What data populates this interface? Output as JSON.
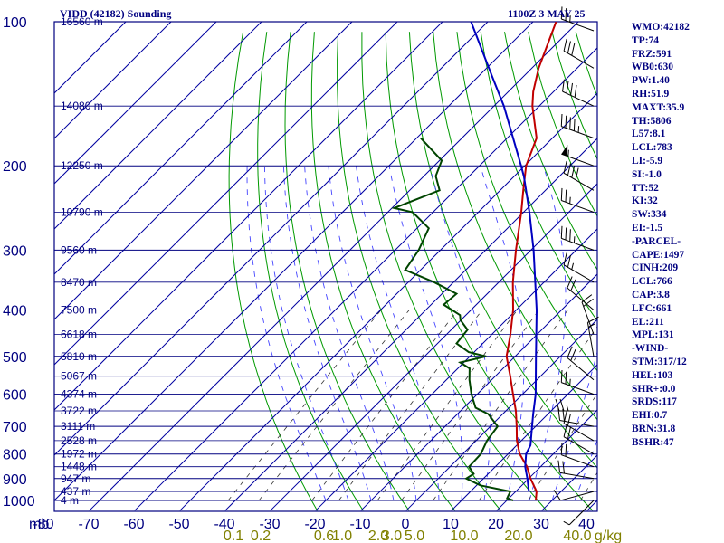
{
  "header": {
    "station_title": "VIDD (42182) Sounding",
    "time_title": "1100Z  3 MAY 25"
  },
  "indices": [
    "WMO:42182",
    "TP:74",
    "FRZ:591",
    "WB0:630",
    "PW:1.40",
    "RH:51.9",
    "MAXT:35.9",
    "TH:5806",
    "L57:8.1",
    "LCL:783",
    "LI:-5.9",
    "SI:-1.0",
    "TT:52",
    "KI:32",
    "SW:334",
    "EI:-1.5",
    "-PARCEL-",
    "CAPE:1497",
    "CINH:209",
    "LCL:766",
    "CAP:3.8",
    "LFC:661",
    "EL:211",
    "MPL:131",
    "-WIND-",
    "STM:317/12",
    "HEL:103",
    "SHR+:0.0",
    "SRDS:117",
    "EHI:0.7",
    "BRN:31.8",
    "BSHR:47"
  ],
  "colors": {
    "frame": "#000080",
    "isotherm_grid": "#0000a0",
    "dry_adiabat": "#009900",
    "moist_adiabat": "#4444ff",
    "mixing_ratio": "#333333",
    "temperature": "#c00000",
    "dewpoint": "#004400",
    "parcel": "#0000c0",
    "wind_barb": "#000000",
    "mixing_label": "#808000"
  },
  "chart_data": {
    "type": "skew-t",
    "title": "VIDD (42182) Sounding",
    "subtitle": "1100Z  3 MAY 25",
    "pressure_levels": [
      1000,
      900,
      800,
      700,
      600,
      500,
      400,
      300,
      200,
      100
    ],
    "pressure_labels": [
      "1000",
      "900",
      "800",
      "700",
      "600",
      "500",
      "400",
      "300",
      "200",
      "100"
    ],
    "y_axis_unit": "mb",
    "temperature_ticks": [
      -80,
      -70,
      -60,
      -50,
      -40,
      -30,
      -20,
      -10,
      0,
      10,
      20,
      30,
      40
    ],
    "temperature_labels": [
      "-80",
      "-70",
      "-60",
      "-50",
      "-40",
      "-30",
      "-20",
      "-10",
      "0",
      "10",
      "20",
      "30",
      "40"
    ],
    "ylim": [
      1000,
      100
    ],
    "height_labels": [
      {
        "p": 1000,
        "text": "4 m"
      },
      {
        "p": 958,
        "text": "437 m"
      },
      {
        "p": 900,
        "text": "947 m"
      },
      {
        "p": 850,
        "text": "1448 m"
      },
      {
        "p": 800,
        "text": "1972 m"
      },
      {
        "p": 750,
        "text": "2528 m"
      },
      {
        "p": 700,
        "text": "3111 m"
      },
      {
        "p": 650,
        "text": "3722 m"
      },
      {
        "p": 600,
        "text": "4374 m"
      },
      {
        "p": 550,
        "text": "5067 m"
      },
      {
        "p": 500,
        "text": "5810 m"
      },
      {
        "p": 450,
        "text": "6618 m"
      },
      {
        "p": 400,
        "text": "7500 m"
      },
      {
        "p": 350,
        "text": "8470 m"
      },
      {
        "p": 300,
        "text": "9560 m"
      },
      {
        "p": 250,
        "text": "10790 m"
      },
      {
        "p": 200,
        "text": "12250 m"
      },
      {
        "p": 150,
        "text": "14080 m"
      },
      {
        "p": 100,
        "text": "16560 m"
      }
    ],
    "mixing_ratio_values": [
      0.1,
      0.2,
      0.6,
      1.0,
      2.0,
      3.0,
      5.0,
      10.0,
      20.0,
      40.0
    ],
    "mixing_ratio_labels": [
      "0.1",
      "0.2",
      "0.6",
      "1.0",
      "2.0",
      "3.0",
      "5.0",
      "10.0",
      "20.0",
      "40.0"
    ],
    "mixing_ratio_unit": "g/kg",
    "mixing_ratio_label_c": [
      -38,
      -32,
      -18,
      -14,
      -6,
      -3,
      2,
      13,
      25,
      38
    ],
    "dry_adiabat_theta_k": [
      250,
      260,
      270,
      280,
      290,
      300,
      310,
      320,
      330,
      340,
      350,
      360,
      370,
      380,
      390,
      400,
      410,
      420,
      430,
      440,
      450,
      460,
      470,
      480,
      490,
      500,
      510,
      520,
      530,
      540,
      550,
      560,
      570,
      580,
      590
    ],
    "moist_adiabat_base_c": [
      -20,
      -15,
      -10,
      -5,
      0,
      5,
      10,
      15,
      20,
      25,
      30,
      35
    ],
    "series": [
      {
        "name": "temperature",
        "points": [
          [
            1000,
            26.4
          ],
          [
            958,
            24.6
          ],
          [
            900,
            20.4
          ],
          [
            850,
            17.0
          ],
          [
            800,
            12.6
          ],
          [
            750,
            9.0
          ],
          [
            700,
            5.8
          ],
          [
            650,
            2.2
          ],
          [
            600,
            -2.1
          ],
          [
            550,
            -6.7
          ],
          [
            500,
            -11.9
          ],
          [
            450,
            -15.9
          ],
          [
            400,
            -20.7
          ],
          [
            350,
            -26.9
          ],
          [
            300,
            -33.3
          ],
          [
            250,
            -40.5
          ],
          [
            225,
            -44.9
          ],
          [
            200,
            -49.7
          ],
          [
            175,
            -53.5
          ],
          [
            150,
            -61.5
          ],
          [
            140,
            -64.5
          ],
          [
            125,
            -68.5
          ],
          [
            100,
            -74.9
          ]
        ]
      },
      {
        "name": "dewpoint",
        "points": [
          [
            1000,
            21.4
          ],
          [
            990,
            19.6
          ],
          [
            958,
            18.8
          ],
          [
            930,
            10.8
          ],
          [
            900,
            6.2
          ],
          [
            880,
            6.8
          ],
          [
            850,
            4.2
          ],
          [
            800,
            4.0
          ],
          [
            750,
            2.4
          ],
          [
            700,
            1.6
          ],
          [
            660,
            -3.2
          ],
          [
            640,
            -7.4
          ],
          [
            600,
            -11.3
          ],
          [
            560,
            -14.9
          ],
          [
            530,
            -17.4
          ],
          [
            515,
            -20.8
          ],
          [
            500,
            -16.4
          ],
          [
            490,
            -21.2
          ],
          [
            470,
            -25.8
          ],
          [
            440,
            -26.4
          ],
          [
            420,
            -30.1
          ],
          [
            410,
            -31.3
          ],
          [
            400,
            -34.2
          ],
          [
            390,
            -37.2
          ],
          [
            370,
            -36.8
          ],
          [
            350,
            -44.3
          ],
          [
            330,
            -53.4
          ],
          [
            300,
            -54.8
          ],
          [
            270,
            -57.4
          ],
          [
            250,
            -64.5
          ],
          [
            245,
            -69.5
          ],
          [
            225,
            -63.4
          ],
          [
            210,
            -67.4
          ],
          [
            195,
            -69.5
          ],
          [
            175,
            -79.1
          ]
        ]
      },
      {
        "name": "parcel",
        "points": [
          [
            958,
            22.9
          ],
          [
            900,
            19.7
          ],
          [
            850,
            16.6
          ],
          [
            800,
            14.0
          ],
          [
            766,
            13.0
          ],
          [
            700,
            9.2
          ],
          [
            661,
            6.8
          ],
          [
            600,
            2.9
          ],
          [
            500,
            -5.4
          ],
          [
            400,
            -15.5
          ],
          [
            300,
            -29.4
          ],
          [
            250,
            -38.7
          ],
          [
            211,
            -47.7
          ],
          [
            200,
            -50.8
          ],
          [
            150,
            -67.8
          ],
          [
            130,
            -77.0
          ],
          [
            100,
            -93.7
          ]
        ]
      }
    ],
    "wind_barbs": [
      {
        "p": 1000,
        "dir": 225,
        "spd": 5
      },
      {
        "p": 958,
        "dir": 255,
        "spd": 10
      },
      {
        "p": 900,
        "dir": 280,
        "spd": 20
      },
      {
        "p": 850,
        "dir": 290,
        "spd": 20
      },
      {
        "p": 800,
        "dir": 300,
        "spd": 20
      },
      {
        "p": 750,
        "dir": 300,
        "spd": 20
      },
      {
        "p": 700,
        "dir": 280,
        "spd": 20
      },
      {
        "p": 650,
        "dir": 270,
        "spd": 25
      },
      {
        "p": 600,
        "dir": 290,
        "spd": 25
      },
      {
        "p": 560,
        "dir": 310,
        "spd": 20
      },
      {
        "p": 500,
        "dir": 350,
        "spd": 15
      },
      {
        "p": 450,
        "dir": 340,
        "spd": 20
      },
      {
        "p": 400,
        "dir": 310,
        "spd": 20
      },
      {
        "p": 350,
        "dir": 300,
        "spd": 25
      },
      {
        "p": 300,
        "dir": 290,
        "spd": 35
      },
      {
        "p": 250,
        "dir": 290,
        "spd": 25
      },
      {
        "p": 225,
        "dir": 300,
        "spd": 40
      },
      {
        "p": 200,
        "dir": 290,
        "spd": 55
      },
      {
        "p": 175,
        "dir": 290,
        "spd": 45
      },
      {
        "p": 150,
        "dir": 295,
        "spd": 40
      },
      {
        "p": 125,
        "dir": 300,
        "spd": 30
      },
      {
        "p": 100,
        "dir": 290,
        "spd": 25
      }
    ]
  }
}
